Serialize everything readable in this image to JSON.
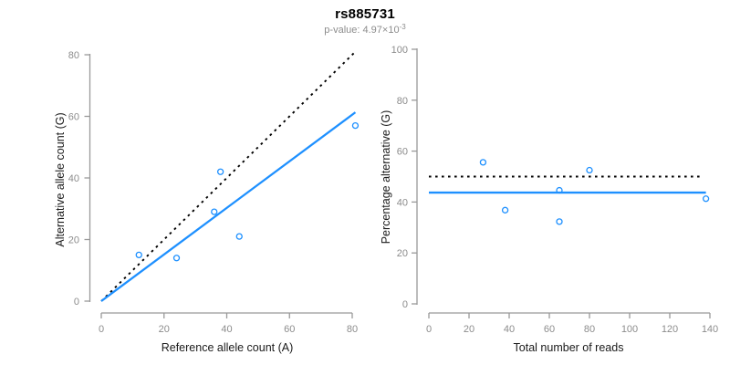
{
  "header": {
    "title": "rs885731",
    "subtitle_prefix": "p-value: 4.97×10",
    "subtitle_exponent": "-3"
  },
  "colors": {
    "accent_blue": "#1e90ff",
    "dotted_line": "#000000",
    "axis_line": "#999999",
    "tick_label": "#8c8c8c",
    "axis_title": "#1a1a1a",
    "subtitle_gray": "#8c8c8c"
  },
  "chart_data": [
    {
      "type": "scatter",
      "name": "allele-count-panel",
      "xlabel": "Reference allele count (A)",
      "ylabel": "Alternative allele count (G)",
      "xlim": [
        0,
        80
      ],
      "ylim": [
        0,
        80
      ],
      "xticks": [
        0,
        20,
        40,
        60,
        80
      ],
      "yticks": [
        0,
        20,
        40,
        60,
        80
      ],
      "grid": false,
      "legend": "none",
      "point_color": "#1e90ff",
      "points": [
        [
          12,
          15
        ],
        [
          24,
          14
        ],
        [
          36,
          29
        ],
        [
          38,
          42
        ],
        [
          44,
          21
        ],
        [
          81,
          57
        ]
      ],
      "lines": [
        {
          "name": "identity-line",
          "style": "dotted",
          "color": "#000000",
          "x": [
            0,
            80.7
          ],
          "y": [
            0,
            80.7
          ]
        },
        {
          "name": "regression-line",
          "style": "solid",
          "color": "#1e90ff",
          "x": [
            0,
            81
          ],
          "y": [
            0,
            61.3
          ]
        }
      ]
    },
    {
      "type": "scatter",
      "name": "percentage-panel",
      "xlabel": "Total number of reads",
      "ylabel": "Percentage alternative (G)",
      "xlim": [
        0,
        140
      ],
      "ylim": [
        0,
        100
      ],
      "xticks": [
        0,
        20,
        40,
        60,
        80,
        100,
        120,
        140
      ],
      "yticks": [
        0,
        20,
        40,
        60,
        80,
        100
      ],
      "grid": false,
      "legend": "none",
      "point_color": "#1e90ff",
      "points": [
        [
          27,
          55.6
        ],
        [
          38,
          36.8
        ],
        [
          65,
          44.6
        ],
        [
          65,
          32.3
        ],
        [
          80,
          52.5
        ],
        [
          138,
          41.3
        ]
      ],
      "lines": [
        {
          "name": "fifty-percent-line",
          "style": "dotted",
          "color": "#000000",
          "x": [
            0,
            135.5
          ],
          "y": [
            50,
            50
          ]
        },
        {
          "name": "mean-percentage-line",
          "style": "solid",
          "color": "#1e90ff",
          "x": [
            0,
            138
          ],
          "y": [
            43.7,
            43.7
          ]
        }
      ]
    }
  ]
}
